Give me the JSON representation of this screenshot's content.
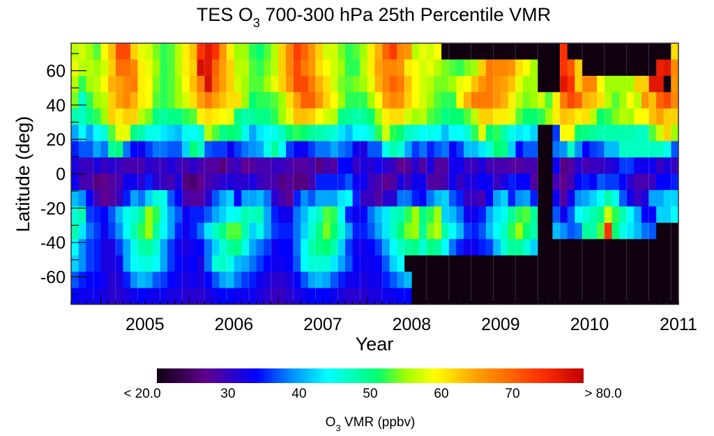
{
  "chart_data": {
    "type": "heatmap",
    "title": "TES O3 700-300 hPa 25th Percentile VMR",
    "title_parts": {
      "pre": "TES O",
      "sub": "3",
      "post": " 700-300 hPa 25th Percentile VMR"
    },
    "xlabel": "Year",
    "ylabel": "Latitude (deg)",
    "x_start": "2004-09",
    "x_step": "1 month",
    "x_count": 82,
    "xlim": [
      2004.67,
      2011.5
    ],
    "x_ticks": [
      2005,
      2006,
      2007,
      2008,
      2009,
      2010,
      2011
    ],
    "x_tick_labels": [
      "2005",
      "2006",
      "2007",
      "2008",
      "2009",
      "2010",
      "2011"
    ],
    "ylim": [
      -76,
      76
    ],
    "y_ticks": [
      60,
      40,
      20,
      0,
      -20,
      -40,
      -60
    ],
    "y_tick_labels": [
      "60",
      "40",
      "20",
      "0",
      "-20",
      "-40",
      "-60"
    ],
    "row_count": 16,
    "row_order": "north-to-south",
    "missing_value": null,
    "colorbar": {
      "min": 20,
      "max": 80,
      "ticks": [
        20,
        30,
        40,
        50,
        60,
        70,
        80
      ],
      "tick_labels": [
        "< 20.0",
        "30",
        "40",
        "50",
        "60",
        "70",
        "> 80.0"
      ],
      "label_parts": {
        "pre": "O",
        "sub": "3",
        "post": " VMR (ppbv)"
      },
      "label": "O3 VMR (ppbv)",
      "stops": [
        {
          "v": 20,
          "c": "#100010"
        },
        {
          "v": 27,
          "c": "#600090"
        },
        {
          "v": 34,
          "c": "#0000ff"
        },
        {
          "v": 39,
          "c": "#0090ff"
        },
        {
          "v": 44,
          "c": "#00ffff"
        },
        {
          "v": 51,
          "c": "#00ff70"
        },
        {
          "v": 55,
          "c": "#a0ff00"
        },
        {
          "v": 59,
          "c": "#ffff00"
        },
        {
          "v": 65,
          "c": "#ffa000"
        },
        {
          "v": 74,
          "c": "#ff3000"
        },
        {
          "v": 80,
          "c": "#c00000"
        }
      ]
    },
    "grid": [
      [
        56,
        57,
        55,
        53,
        59,
        63,
        72,
        72,
        62,
        58,
        57,
        54,
        52,
        53,
        56,
        60,
        63,
        74,
        77,
        74,
        66,
        60,
        55,
        55,
        52,
        51,
        53,
        56,
        62,
        67,
        73,
        70,
        66,
        62,
        57,
        57,
        54,
        52,
        53,
        55,
        60,
        64,
        70,
        73,
        67,
        66,
        56,
        58,
        57,
        59,
        null,
        null,
        null,
        null,
        null,
        null,
        null,
        null,
        null,
        null,
        null,
        null,
        null,
        null,
        null,
        null,
        74,
        null,
        null,
        null,
        null,
        null,
        null,
        null,
        null,
        null,
        null,
        null,
        null,
        null,
        null,
        61
      ],
      [
        58,
        56,
        56,
        55,
        57,
        62,
        69,
        69,
        67,
        60,
        58,
        55,
        52,
        53,
        56,
        60,
        62,
        78,
        77,
        70,
        65,
        62,
        56,
        56,
        53,
        52,
        54,
        56,
        62,
        67,
        72,
        68,
        66,
        61,
        59,
        57,
        55,
        52,
        52,
        56,
        60,
        65,
        67,
        67,
        66,
        60,
        59,
        57,
        58,
        56,
        54,
        53,
        52,
        54,
        55,
        62,
        68,
        67,
        67,
        66,
        61,
        59,
        55,
        null,
        null,
        null,
        74,
        71,
        62,
        null,
        null,
        null,
        null,
        null,
        null,
        null,
        null,
        null,
        null,
        76,
        77,
        67
      ],
      [
        56,
        52,
        55,
        56,
        59,
        64,
        65,
        67,
        68,
        60,
        59,
        54,
        52,
        53,
        55,
        59,
        63,
        68,
        78,
        69,
        65,
        62,
        57,
        55,
        53,
        53,
        55,
        58,
        62,
        66,
        72,
        72,
        68,
        64,
        61,
        57,
        54,
        53,
        54,
        55,
        58,
        64,
        67,
        70,
        68,
        63,
        59,
        57,
        56,
        54,
        54,
        55,
        58,
        59,
        63,
        66,
        68,
        66,
        65,
        63,
        58,
        55,
        55,
        null,
        null,
        null,
        77,
        74,
        62,
        67,
        67,
        59,
        55,
        55,
        55,
        55,
        62,
        62,
        77,
        77,
        null,
        66
      ],
      [
        54,
        46,
        52,
        55,
        56,
        62,
        65,
        67,
        64,
        60,
        59,
        53,
        52,
        53,
        55,
        57,
        61,
        65,
        68,
        65,
        63,
        61,
        61,
        55,
        51,
        52,
        52,
        53,
        55,
        61,
        65,
        70,
        70,
        66,
        62,
        59,
        55,
        52,
        52,
        52,
        55,
        59,
        65,
        67,
        66,
        62,
        59,
        57,
        55,
        53,
        52,
        52,
        59,
        64,
        68,
        68,
        68,
        66,
        64,
        60,
        56,
        54,
        55,
        57,
        53,
        60,
        68,
        72,
        70,
        64,
        63,
        61,
        56,
        53,
        55,
        59,
        56,
        66,
        63,
        70,
        72,
        67
      ],
      [
        48,
        47,
        50,
        52,
        55,
        62,
        60,
        62,
        62,
        56,
        54,
        50,
        49,
        50,
        50,
        52,
        53,
        60,
        61,
        60,
        59,
        58,
        50,
        48,
        49,
        50,
        50,
        52,
        55,
        58,
        63,
        63,
        62,
        59,
        57,
        56,
        50,
        49,
        48,
        49,
        51,
        55,
        60,
        61,
        61,
        57,
        55,
        56,
        53,
        52,
        50,
        51,
        51,
        53,
        56,
        62,
        62,
        60,
        60,
        58,
        53,
        51,
        51,
        52,
        55,
        60,
        63,
        62,
        60,
        61,
        56,
        51,
        52,
        54,
        56,
        55,
        59,
        59,
        63,
        65,
        62,
        62
      ],
      [
        40,
        44,
        40,
        44,
        46,
        53,
        58,
        58,
        50,
        48,
        45,
        45,
        43,
        42,
        41,
        45,
        44,
        46,
        56,
        53,
        50,
        51,
        50,
        45,
        40,
        43,
        44,
        45,
        47,
        51,
        52,
        51,
        49,
        48,
        47,
        46,
        43,
        41,
        44,
        44,
        46,
        52,
        57,
        52,
        51,
        47,
        46,
        44,
        45,
        44,
        41,
        44,
        44,
        46,
        52,
        58,
        51,
        52,
        48,
        45,
        43,
        44,
        42,
        null,
        null,
        36,
        59,
        59,
        51,
        50,
        49,
        48,
        48,
        48,
        48,
        48,
        47,
        47,
        53,
        57,
        62,
        55
      ],
      [
        35,
        37,
        37,
        40,
        38,
        49,
        50,
        38,
        34,
        33,
        36,
        38,
        38,
        37,
        37,
        42,
        51,
        47,
        37,
        36,
        36,
        33,
        36,
        38,
        39,
        40,
        45,
        49,
        44,
        36,
        34,
        33,
        36,
        38,
        38,
        40,
        38,
        37,
        33,
        32,
        37,
        37,
        45,
        48,
        46,
        40,
        36,
        38,
        35,
        37,
        38,
        34,
        36,
        41,
        41,
        43,
        46,
        51,
        50,
        42,
        34,
        37,
        37,
        null,
        null,
        38,
        39,
        47,
        39,
        34,
        36,
        37,
        41,
        41,
        47,
        47,
        47,
        47,
        47,
        47,
        45,
        37
      ],
      [
        32,
        30,
        30,
        32,
        30,
        31,
        30,
        29,
        29,
        29,
        31,
        30,
        30,
        32,
        30,
        29,
        31,
        29,
        28,
        28,
        26,
        29,
        30,
        27,
        28,
        29,
        29,
        30,
        30,
        29,
        28,
        28,
        29,
        26,
        29,
        28,
        34,
        34,
        30,
        32,
        31,
        33,
        31,
        30,
        27,
        28,
        31,
        28,
        32,
        28,
        28,
        33,
        33,
        30,
        30,
        32,
        29,
        29,
        29,
        28,
        28,
        29,
        29,
        null,
        null,
        33,
        26,
        28,
        31,
        29,
        30,
        30,
        31,
        32,
        36,
        36,
        33,
        33,
        33,
        30,
        32,
        30
      ],
      [
        33,
        29,
        29,
        26,
        27,
        28,
        29,
        33,
        33,
        31,
        35,
        31,
        30,
        29,
        32,
        26,
        25,
        27,
        29,
        30,
        31,
        32,
        31,
        31,
        32,
        30,
        29,
        29,
        26,
        28,
        26,
        26,
        29,
        35,
        35,
        35,
        35,
        37,
        33,
        33,
        30,
        29,
        27,
        28,
        32,
        30,
        33,
        33,
        28,
        28,
        29,
        33,
        30,
        32,
        32,
        34,
        33,
        30,
        32,
        35,
        34,
        34,
        28,
        null,
        null,
        29,
        27,
        29,
        34,
        35,
        34,
        37,
        36,
        36,
        34,
        31,
        29,
        29,
        30,
        34,
        34,
        35
      ],
      [
        41,
        39,
        34,
        29,
        27,
        28,
        30,
        35,
        40,
        38,
        42,
        46,
        45,
        37,
        34,
        29,
        28,
        28,
        31,
        37,
        40,
        42,
        34,
        40,
        40,
        41,
        38,
        31,
        29,
        27,
        35,
        39,
        37,
        40,
        40,
        40,
        43,
        44,
        35,
        30,
        30,
        28,
        31,
        31,
        38,
        38,
        35,
        34,
        38,
        41,
        42,
        37,
        35,
        30,
        30,
        29,
        34,
        40,
        42,
        35,
        39,
        40,
        35,
        null,
        null,
        33,
        28,
        33,
        39,
        40,
        42,
        44,
        48,
        45,
        37,
        33,
        30,
        32,
        40,
        40,
        42,
        42
      ],
      [
        46,
        48,
        36,
        35,
        34,
        37,
        41,
        45,
        46,
        49,
        55,
        52,
        45,
        40,
        37,
        33,
        35,
        35,
        37,
        40,
        42,
        44,
        45,
        48,
        47,
        48,
        40,
        35,
        33,
        33,
        38,
        41,
        45,
        47,
        53,
        52,
        44,
        35,
        33,
        34,
        38,
        41,
        43,
        47,
        48,
        52,
        55,
        50,
        52,
        55,
        42,
        41,
        38,
        33,
        33,
        35,
        40,
        43,
        45,
        49,
        52,
        53,
        49,
        null,
        null,
        37,
        33,
        37,
        44,
        46,
        48,
        50,
        57,
        52,
        48,
        44,
        40,
        34,
        34,
        42,
        42,
        44
      ],
      [
        48,
        43,
        38,
        36,
        33,
        36,
        39,
        44,
        48,
        52,
        55,
        49,
        44,
        40,
        35,
        33,
        35,
        38,
        43,
        47,
        50,
        53,
        53,
        48,
        42,
        45,
        40,
        36,
        35,
        35,
        38,
        42,
        46,
        50,
        54,
        51,
        46,
        40,
        35,
        35,
        37,
        40,
        43,
        47,
        51,
        54,
        55,
        49,
        54,
        56,
        48,
        44,
        41,
        36,
        35,
        37,
        41,
        44,
        47,
        52,
        55,
        51,
        48,
        null,
        null,
        41,
        39,
        37,
        38,
        49,
        48,
        53,
        74,
        51,
        45,
        43,
        41,
        38,
        37,
        null,
        null,
        null
      ],
      [
        44,
        39,
        36,
        35,
        32,
        32,
        36,
        40,
        45,
        48,
        49,
        46,
        40,
        36,
        33,
        32,
        33,
        34,
        38,
        42,
        46,
        49,
        50,
        45,
        40,
        38,
        36,
        33,
        34,
        34,
        38,
        44,
        48,
        50,
        51,
        48,
        42,
        36,
        33,
        33,
        34,
        36,
        40,
        44,
        47,
        49,
        50,
        46,
        50,
        49,
        44,
        38,
        35,
        33,
        33,
        35,
        36,
        41,
        46,
        49,
        49,
        46,
        42,
        null,
        null,
        null,
        null,
        null,
        null,
        null,
        null,
        null,
        null,
        null,
        null,
        null,
        null,
        null,
        null,
        null,
        null,
        null
      ],
      [
        42,
        39,
        36,
        35,
        32,
        32,
        33,
        40,
        44,
        45,
        46,
        44,
        40,
        36,
        34,
        33,
        34,
        32,
        38,
        46,
        47,
        45,
        41,
        40,
        38,
        36,
        34,
        33,
        33,
        34,
        37,
        44,
        46,
        46,
        46,
        43,
        40,
        37,
        34,
        33,
        33,
        34,
        37,
        42,
        44,
        null,
        null,
        null,
        null,
        null,
        null,
        null,
        null,
        null,
        null,
        null,
        null,
        null,
        null,
        null,
        null,
        null,
        null,
        null,
        null,
        null,
        null,
        null,
        null,
        null,
        null,
        null,
        null,
        null,
        null,
        null,
        null,
        null,
        null,
        null,
        null,
        null
      ],
      [
        37,
        35,
        34,
        34,
        33,
        31,
        32,
        35,
        39,
        41,
        40,
        37,
        36,
        34,
        33,
        32,
        33,
        32,
        34,
        37,
        40,
        41,
        38,
        36,
        35,
        33,
        32,
        31,
        31,
        32,
        34,
        37,
        40,
        41,
        40,
        37,
        35,
        33,
        33,
        32,
        33,
        33,
        35,
        37,
        39,
        41,
        null,
        null,
        null,
        null,
        null,
        null,
        null,
        null,
        null,
        null,
        null,
        null,
        null,
        null,
        null,
        null,
        null,
        null,
        null,
        null,
        null,
        null,
        null,
        null,
        null,
        null,
        null,
        null,
        null,
        null,
        null,
        null,
        null,
        null,
        null,
        null
      ],
      [
        34,
        33,
        33,
        33,
        32,
        31,
        31,
        32,
        33,
        34,
        33,
        33,
        33,
        32,
        32,
        31,
        31,
        31,
        32,
        33,
        34,
        34,
        33,
        33,
        33,
        32,
        31,
        30,
        30,
        31,
        32,
        33,
        34,
        34,
        34,
        33,
        32,
        31,
        31,
        31,
        32,
        32,
        33,
        33,
        34,
        34,
        null,
        null,
        null,
        null,
        null,
        null,
        null,
        null,
        null,
        null,
        null,
        null,
        null,
        null,
        null,
        null,
        null,
        null,
        null,
        null,
        null,
        null,
        null,
        null,
        null,
        null,
        null,
        null,
        null,
        null,
        null,
        null,
        null,
        null,
        null,
        null
      ]
    ]
  }
}
